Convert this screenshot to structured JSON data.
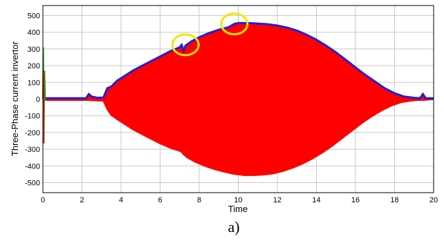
{
  "chart_data": {
    "type": "area",
    "xlabel": "Time",
    "ylabel": "Three-Phase current invertor",
    "caption": "a)",
    "xlim": [
      0,
      20
    ],
    "ylim": [
      -560,
      560
    ],
    "xticks": [
      0,
      2,
      4,
      6,
      8,
      10,
      12,
      14,
      16,
      18,
      20
    ],
    "yticks": [
      500,
      400,
      300,
      200,
      100,
      0,
      -100,
      -200,
      -300,
      -400,
      -500
    ],
    "grid": true,
    "colors": {
      "upper_envelope": "#1f1fd6",
      "fill": "#ff0000",
      "spike": "#1a9a1a",
      "highlight": "#f2e600"
    },
    "series": [
      {
        "role": "upper-envelope",
        "color": "#1f1fd6",
        "x": [
          0,
          0.2,
          2.2,
          2.35,
          2.5,
          2.8,
          3.1,
          3.3,
          3.5,
          3.8,
          4.2,
          4.6,
          5.0,
          5.5,
          6.0,
          6.5,
          7.0,
          7.1,
          7.2,
          7.3,
          7.6,
          8.0,
          8.5,
          9.0,
          9.5,
          9.8,
          10.0,
          10.5,
          11.0,
          11.5,
          12.0,
          12.5,
          13.0,
          13.5,
          14.0,
          14.5,
          15.0,
          15.5,
          16.0,
          16.5,
          17.0,
          17.5,
          18.0,
          18.5,
          19.0,
          19.3,
          19.45,
          19.6,
          20
        ],
        "y": [
          0,
          5,
          5,
          30,
          15,
          8,
          10,
          65,
          75,
          110,
          140,
          170,
          195,
          225,
          255,
          285,
          310,
          325,
          290,
          320,
          345,
          370,
          395,
          415,
          430,
          450,
          455,
          455,
          452,
          448,
          440,
          428,
          410,
          385,
          355,
          320,
          280,
          235,
          190,
          145,
          105,
          65,
          35,
          15,
          8,
          5,
          30,
          5,
          5
        ]
      },
      {
        "role": "lower-envelope",
        "color": "#ff0000",
        "x": [
          0,
          0.2,
          2.2,
          3.1,
          3.3,
          3.5,
          3.8,
          4.2,
          4.6,
          5.0,
          5.5,
          6.0,
          6.5,
          7.0,
          7.1,
          7.2,
          7.4,
          7.8,
          8.3,
          8.8,
          9.3,
          9.8,
          10.3,
          10.8,
          11.3,
          11.8,
          12.3,
          12.8,
          13.3,
          13.8,
          14.3,
          14.8,
          15.3,
          15.8,
          16.3,
          16.8,
          17.3,
          17.8,
          18.3,
          18.8,
          19.2,
          19.5,
          20
        ],
        "y": [
          0,
          -5,
          -5,
          -10,
          -60,
          -95,
          -120,
          -150,
          -180,
          -205,
          -235,
          -265,
          -290,
          -310,
          -315,
          -330,
          -350,
          -375,
          -400,
          -420,
          -435,
          -448,
          -455,
          -455,
          -452,
          -445,
          -430,
          -410,
          -385,
          -355,
          -320,
          -280,
          -235,
          -190,
          -145,
          -105,
          -70,
          -40,
          -20,
          -10,
          -5,
          -5,
          0
        ]
      },
      {
        "role": "startup-spike",
        "color": "#1a9a1a",
        "x": [
          0,
          0.02,
          0.05,
          0.08,
          0.12
        ],
        "y": [
          0,
          310,
          -265,
          170,
          0
        ]
      }
    ],
    "annotations": [
      {
        "type": "circle",
        "x": 7.3,
        "y": 325,
        "color": "#f2e600"
      },
      {
        "type": "circle",
        "x": 9.8,
        "y": 450,
        "color": "#f2e600"
      }
    ]
  }
}
